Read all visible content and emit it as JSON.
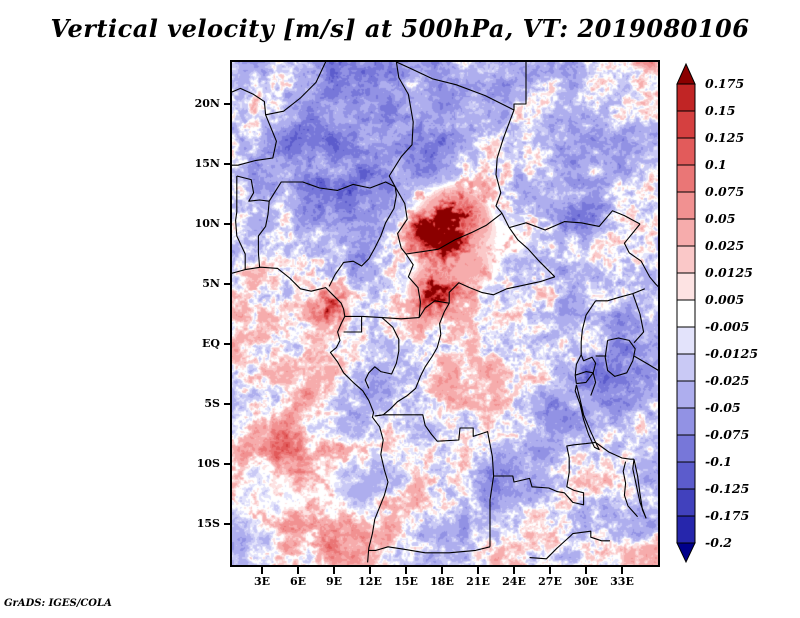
{
  "title": "Vertical velocity [m/s] at 500hPa, VT: 2019080106",
  "attribution": "GrADS: IGES/COLA",
  "chart_data": {
    "type": "heatmap",
    "title": "Vertical velocity [m/s] at 500hPa, VT: 2019080106",
    "variable": "Vertical velocity",
    "units": "m/s",
    "level": "500hPa",
    "valid_time": "2019080106",
    "grid": false,
    "legend_position": "right",
    "x_axis": {
      "tick_labels": [
        "3E",
        "6E",
        "9E",
        "12E",
        "15E",
        "18E",
        "21E",
        "24E",
        "27E",
        "30E",
        "33E"
      ],
      "tick_values_deg_east": [
        3,
        6,
        9,
        12,
        15,
        18,
        21,
        24,
        27,
        30,
        33
      ],
      "range_deg_east": [
        0.5,
        36.2
      ]
    },
    "y_axis": {
      "tick_labels": [
        "20N",
        "15N",
        "10N",
        "5N",
        "EQ",
        "5S",
        "10S",
        "15S"
      ],
      "tick_values_deg_north": [
        20,
        15,
        10,
        5,
        0,
        -5,
        -10,
        -15
      ],
      "range_deg_north": [
        -18.6,
        23.5
      ]
    },
    "colorbar": {
      "boundary_labels": [
        "0.175",
        "0.15",
        "0.125",
        "0.1",
        "0.075",
        "0.05",
        "0.025",
        "0.0125",
        "0.005",
        "-0.005",
        "-0.0125",
        "-0.025",
        "-0.05",
        "-0.075",
        "-0.1",
        "-0.125",
        "-0.175",
        "-0.2"
      ],
      "boundaries": [
        0.175,
        0.15,
        0.125,
        0.1,
        0.075,
        0.05,
        0.025,
        0.0125,
        0.005,
        -0.005,
        -0.0125,
        -0.025,
        -0.05,
        -0.075,
        -0.1,
        -0.125,
        -0.175,
        -0.2
      ],
      "colors_top_to_bottom": [
        "#8b0000",
        "#c12525",
        "#d54040",
        "#e25b5b",
        "#ea7676",
        "#f19191",
        "#f6acac",
        "#fac8c8",
        "#fde3e3",
        "#ffffff",
        "#e3e3fb",
        "#c9c9f5",
        "#aeaeee",
        "#9292e4",
        "#7777d9",
        "#5c5ccc",
        "#4141bd",
        "#2626ac",
        "#00008b"
      ]
    },
    "field_note": "Shaded vertical velocity field over central Africa with country borders overlaid"
  }
}
